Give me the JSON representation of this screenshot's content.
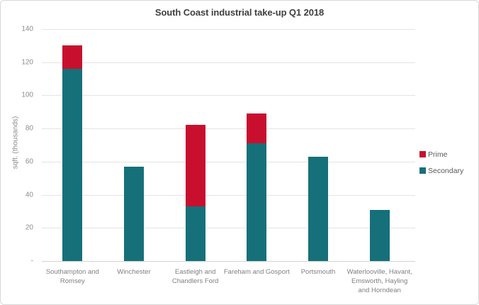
{
  "window": {
    "background": "#FFFFFF",
    "border_color": "#D8D8D8"
  },
  "chart_data": {
    "type": "bar",
    "stacked": true,
    "title": "South Coast industrial take-up Q1 2018",
    "ylabel": "sqft. (thousands)",
    "xlabel": "",
    "categories": [
      "Southampton and Romsey",
      "Winchester",
      "Eastleigh and Chandlers Ford",
      "Fareham and Gosport",
      "Portsmouth",
      "Waterlooville, Havant, Emsworth, Hayling and Horndean"
    ],
    "categories_lines": [
      [
        "Southampton and",
        "Romsey"
      ],
      [
        "Winchester"
      ],
      [
        "Eastleigh and",
        "Chandlers Ford"
      ],
      [
        "Fareham and Gosport"
      ],
      [
        "Portsmouth"
      ],
      [
        "Waterlooville, Havant,",
        "Emsworth, Hayling",
        "and Horndean"
      ]
    ],
    "series": [
      {
        "name": "Prime",
        "color": "#C8102E",
        "values": [
          14,
          0,
          49,
          18,
          0,
          0
        ]
      },
      {
        "name": "Secondary",
        "color": "#15707A",
        "values": [
          116,
          57,
          33,
          71,
          63,
          31
        ]
      }
    ],
    "totals": [
      130,
      57,
      82,
      89,
      63,
      31
    ],
    "ylim": [
      0,
      140
    ],
    "ytick_step": 20,
    "yticks": [
      {
        "value": 0,
        "label": "-"
      },
      {
        "value": 20,
        "label": "20"
      },
      {
        "value": 40,
        "label": "40"
      },
      {
        "value": 60,
        "label": "60"
      },
      {
        "value": 80,
        "label": "80"
      },
      {
        "value": 100,
        "label": "100"
      },
      {
        "value": 120,
        "label": "120"
      },
      {
        "value": 140,
        "label": "140"
      }
    ],
    "grid": true,
    "legend_position": "right",
    "legend": [
      "Prime",
      "Secondary"
    ]
  },
  "colors": {
    "prime": "#C8102E",
    "secondary": "#15707A",
    "gridline": "#E4E4E4",
    "axis_line": "#D2D2D2",
    "tick_label": "#8C8C8C",
    "category_label": "#808080",
    "title": "#3F3F3F",
    "legend_text": "#595959"
  }
}
